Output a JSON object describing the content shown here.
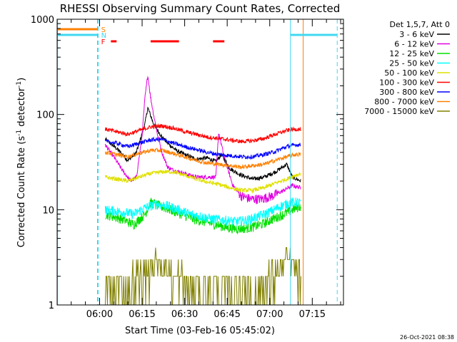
{
  "chart_data": {
    "type": "line",
    "title": "RHESSI Observing Summary Count Rates, Corrected",
    "xlabel": "Start Time (03-Feb-16 05:45:02)",
    "ylabel": "Corrected Count Rate (s",
    "ylabel_sup1": "-1",
    "ylabel_mid": " detector",
    "ylabel_sup2": "-1",
    "ylabel_end": ")",
    "y_scale": "log",
    "ylim": [
      1,
      1000
    ],
    "y_ticks": [
      {
        "value": 1,
        "label": "1"
      },
      {
        "value": 10,
        "label": "10"
      },
      {
        "value": 100,
        "label": "100"
      },
      {
        "value": 1000,
        "label": "1000"
      }
    ],
    "xlim_minutes": [
      345.03,
      446.0
    ],
    "x_ticks": [
      {
        "minutes": 360,
        "label": "06:00"
      },
      {
        "minutes": 375,
        "label": "06:15"
      },
      {
        "minutes": 390,
        "label": "06:30"
      },
      {
        "minutes": 405,
        "label": "06:45"
      },
      {
        "minutes": 420,
        "label": "07:00"
      },
      {
        "minutes": 435,
        "label": "07:15"
      }
    ],
    "legend_title": "Det 1,5,7, Att 0",
    "legend_position": "right",
    "timestamp": "26-Oct-2021 08:38",
    "flags": [
      {
        "letter": "S",
        "color": "#ff8000",
        "segments": [
          [
            345.2,
            359.2
          ]
        ],
        "level": 1
      },
      {
        "letter": "N",
        "color": "#40d8f0",
        "segments": [
          [
            345.2,
            359.2
          ],
          [
            427.3,
            443.8
          ]
        ],
        "level": 2
      },
      {
        "letter": "F",
        "color": "#ff0000",
        "segments": [
          [
            364.0,
            366.0
          ],
          [
            378.0,
            388.0
          ],
          [
            400.0,
            404.0
          ]
        ],
        "level": 3
      }
    ],
    "markers": [
      {
        "minutes": 359.3,
        "color": "#ff8000",
        "style": "dashed"
      },
      {
        "minutes": 359.5,
        "color": "#40d8f0",
        "style": "dashed"
      },
      {
        "minutes": 345.2,
        "color": "#40d8f0",
        "style": "solid"
      },
      {
        "minutes": 427.3,
        "color": "#40d8f0",
        "style": "solid"
      },
      {
        "minutes": 431.8,
        "color": "#ff8000",
        "style": "solid"
      },
      {
        "minutes": 443.8,
        "color": "#40d8f0",
        "style": "dashed"
      }
    ],
    "series": [
      {
        "name": "3 - 6 keV",
        "color": "#000000",
        "points": [
          [
            362,
            55
          ],
          [
            366,
            44
          ],
          [
            370,
            33
          ],
          [
            373,
            40
          ],
          [
            376,
            80
          ],
          [
            377,
            118
          ],
          [
            379,
            80
          ],
          [
            382,
            58
          ],
          [
            384,
            50
          ],
          [
            387,
            42
          ],
          [
            390,
            38
          ],
          [
            394,
            34
          ],
          [
            398,
            35
          ],
          [
            401,
            32
          ],
          [
            403,
            38
          ],
          [
            406,
            27
          ],
          [
            410,
            23
          ],
          [
            414,
            21
          ],
          [
            418,
            22
          ],
          [
            422,
            25
          ],
          [
            426,
            30
          ],
          [
            428,
            22
          ],
          [
            431,
            20
          ]
        ]
      },
      {
        "name": "6 - 12 keV",
        "color": "#e000e0",
        "points": [
          [
            362,
            48
          ],
          [
            365,
            36
          ],
          [
            368,
            26
          ],
          [
            371,
            20
          ],
          [
            373,
            22
          ],
          [
            375,
            60
          ],
          [
            376,
            150
          ],
          [
            377,
            260
          ],
          [
            378,
            150
          ],
          [
            380,
            70
          ],
          [
            382,
            40
          ],
          [
            384,
            28
          ],
          [
            386,
            26
          ],
          [
            390,
            24
          ],
          [
            394,
            22
          ],
          [
            398,
            22
          ],
          [
            401,
            22
          ],
          [
            402,
            65
          ],
          [
            404,
            35
          ],
          [
            407,
            18
          ],
          [
            410,
            14
          ],
          [
            413,
            13
          ],
          [
            417,
            13
          ],
          [
            421,
            14
          ],
          [
            425,
            16
          ],
          [
            428,
            18
          ],
          [
            431,
            17
          ]
        ]
      },
      {
        "name": "12 - 25 keV",
        "color": "#00e000",
        "points": [
          [
            362,
            9
          ],
          [
            368,
            8
          ],
          [
            372,
            7
          ],
          [
            376,
            9
          ],
          [
            378,
            12
          ],
          [
            381,
            11
          ],
          [
            385,
            10
          ],
          [
            389,
            9
          ],
          [
            393,
            8
          ],
          [
            397,
            7.5
          ],
          [
            401,
            7
          ],
          [
            405,
            6.5
          ],
          [
            409,
            6.3
          ],
          [
            413,
            6.5
          ],
          [
            417,
            7
          ],
          [
            421,
            8
          ],
          [
            425,
            9
          ],
          [
            428,
            10
          ],
          [
            431,
            11
          ]
        ]
      },
      {
        "name": "25 - 50 keV",
        "color": "#00ffff",
        "points": [
          [
            362,
            10
          ],
          [
            368,
            9.5
          ],
          [
            372,
            9
          ],
          [
            376,
            10.5
          ],
          [
            380,
            11.5
          ],
          [
            384,
            11
          ],
          [
            388,
            10
          ],
          [
            392,
            9
          ],
          [
            396,
            8.5
          ],
          [
            400,
            8
          ],
          [
            404,
            7.8
          ],
          [
            408,
            7.5
          ],
          [
            412,
            7.8
          ],
          [
            416,
            8.5
          ],
          [
            420,
            9.5
          ],
          [
            424,
            11
          ],
          [
            428,
            12
          ],
          [
            431,
            12
          ]
        ]
      },
      {
        "name": "50 - 100 keV",
        "color": "#e0e000",
        "points": [
          [
            362,
            22
          ],
          [
            366,
            21
          ],
          [
            370,
            20
          ],
          [
            374,
            22
          ],
          [
            378,
            24
          ],
          [
            382,
            25
          ],
          [
            386,
            25
          ],
          [
            390,
            23
          ],
          [
            394,
            21
          ],
          [
            398,
            19.5
          ],
          [
            402,
            18.5
          ],
          [
            406,
            17
          ],
          [
            410,
            16
          ],
          [
            414,
            16
          ],
          [
            418,
            17
          ],
          [
            422,
            19
          ],
          [
            426,
            21
          ],
          [
            429,
            23
          ],
          [
            431,
            24
          ]
        ]
      },
      {
        "name": "100 - 300 keV",
        "color": "#ff0000",
        "points": [
          [
            362,
            70
          ],
          [
            366,
            66
          ],
          [
            370,
            62
          ],
          [
            374,
            68
          ],
          [
            378,
            74
          ],
          [
            382,
            76
          ],
          [
            386,
            72
          ],
          [
            390,
            66
          ],
          [
            394,
            62
          ],
          [
            398,
            58
          ],
          [
            402,
            56
          ],
          [
            406,
            54
          ],
          [
            410,
            52
          ],
          [
            414,
            53
          ],
          [
            418,
            56
          ],
          [
            422,
            62
          ],
          [
            426,
            68
          ],
          [
            429,
            70
          ],
          [
            431,
            70
          ]
        ]
      },
      {
        "name": "300 - 800 keV",
        "color": "#0000ff",
        "points": [
          [
            362,
            52
          ],
          [
            366,
            50
          ],
          [
            370,
            46
          ],
          [
            374,
            50
          ],
          [
            378,
            54
          ],
          [
            382,
            55
          ],
          [
            386,
            50
          ],
          [
            390,
            46
          ],
          [
            394,
            43
          ],
          [
            398,
            40
          ],
          [
            402,
            38
          ],
          [
            406,
            37
          ],
          [
            410,
            36
          ],
          [
            414,
            36
          ],
          [
            418,
            38
          ],
          [
            422,
            41
          ],
          [
            426,
            46
          ],
          [
            429,
            48
          ],
          [
            431,
            48
          ]
        ]
      },
      {
        "name": "800 - 7000 keV",
        "color": "#ff8000",
        "points": [
          [
            362,
            40
          ],
          [
            366,
            38
          ],
          [
            370,
            36
          ],
          [
            374,
            39
          ],
          [
            378,
            42
          ],
          [
            382,
            42
          ],
          [
            386,
            39
          ],
          [
            390,
            36
          ],
          [
            394,
            33
          ],
          [
            398,
            31
          ],
          [
            402,
            30
          ],
          [
            406,
            29
          ],
          [
            410,
            28
          ],
          [
            414,
            29
          ],
          [
            418,
            30
          ],
          [
            422,
            33
          ],
          [
            426,
            36
          ],
          [
            429,
            38
          ],
          [
            431,
            38
          ]
        ]
      },
      {
        "name": "7000 - 15000 keV",
        "color": "#808000",
        "points": [
          [
            362,
            1.5
          ],
          [
            370,
            1.5
          ],
          [
            378,
            2.5
          ],
          [
            382,
            3
          ],
          [
            386,
            2
          ],
          [
            392,
            1.5
          ],
          [
            400,
            1.5
          ],
          [
            410,
            1.5
          ],
          [
            418,
            1.5
          ],
          [
            424,
            2.5
          ],
          [
            428,
            3
          ],
          [
            431,
            2
          ]
        ]
      }
    ]
  }
}
